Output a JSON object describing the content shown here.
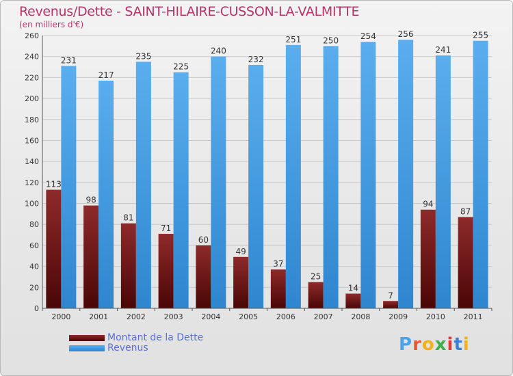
{
  "chart_data": {
    "type": "bar",
    "title": "Revenus/Dette - SAINT-HILAIRE-CUSSON-LA-VALMITTE",
    "subtitle": "(en milliers d'€)",
    "categories": [
      "2000",
      "2001",
      "2002",
      "2003",
      "2004",
      "2005",
      "2006",
      "2007",
      "2008",
      "2009",
      "2010",
      "2011"
    ],
    "series": [
      {
        "name": "Montant de la Dette",
        "color": "#7a1a1a",
        "values": [
          113,
          98,
          81,
          71,
          60,
          49,
          37,
          25,
          14,
          7,
          94,
          87
        ]
      },
      {
        "name": "Revenus",
        "color": "#4aa3e8",
        "values": [
          231,
          217,
          235,
          225,
          240,
          232,
          251,
          250,
          254,
          256,
          241,
          255
        ]
      }
    ],
    "ylim": [
      0,
      260
    ],
    "yticks": [
      0,
      20,
      40,
      60,
      80,
      100,
      120,
      140,
      160,
      180,
      200,
      220,
      240,
      260
    ],
    "grid": true,
    "legend": "bottom-left"
  },
  "logo": {
    "letters": [
      "P",
      "r",
      "o",
      "x",
      "i",
      "t",
      "i"
    ],
    "colors": [
      "#4aa3e8",
      "#e85a2e",
      "#f2b01e",
      "#3fae49",
      "#e03b3b",
      "#3f7fd0",
      "#f2b01e"
    ]
  }
}
